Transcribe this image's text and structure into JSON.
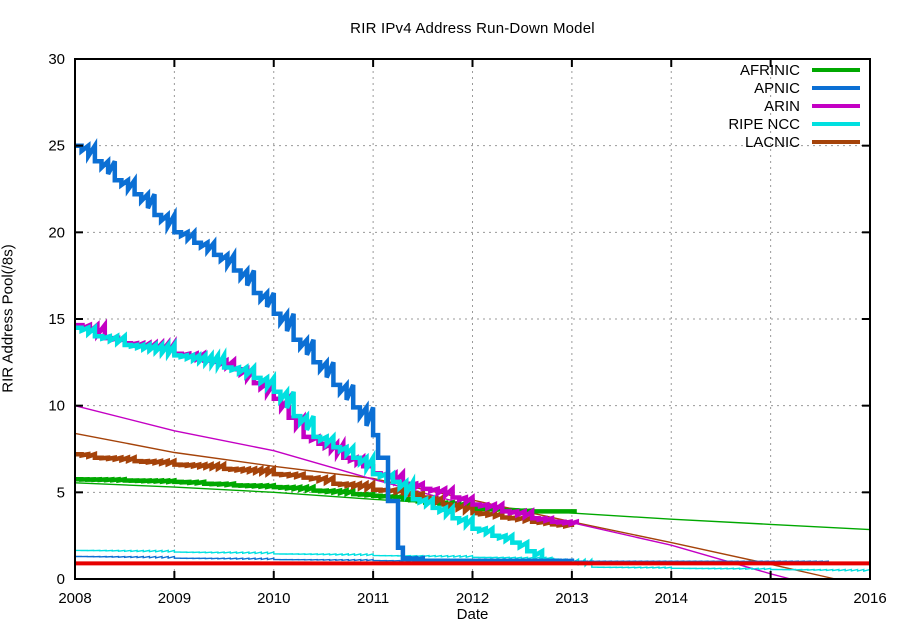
{
  "chart_data": {
    "type": "line",
    "title": "RIR IPv4 Address Run-Down Model",
    "xlabel": "Date",
    "ylabel": "RIR Address Pool(/8s)",
    "xlim": [
      2008,
      2016
    ],
    "ylim": [
      0,
      30
    ],
    "x_ticks": [
      2008,
      2009,
      2010,
      2011,
      2012,
      2013,
      2014,
      2015,
      2016
    ],
    "y_ticks": [
      0,
      5,
      10,
      15,
      20,
      25,
      30
    ],
    "grid": true,
    "grid_style": "dotted",
    "grid_color": "#9a9a9a",
    "legend_position": "top-right-inside",
    "legend": [
      {
        "label": "AFRINIC",
        "color": "#00a800"
      },
      {
        "label": "APNIC",
        "color": "#0b6fd4"
      },
      {
        "label": "ARIN",
        "color": "#c400c4"
      },
      {
        "label": "RIPE NCC",
        "color": "#00e0e0"
      },
      {
        "label": "LACNIC",
        "color": "#a5430a"
      }
    ],
    "series": [
      {
        "name": "AFRINIC-model",
        "color": "#00a800",
        "width": 1.4,
        "stepped": false,
        "points": [
          [
            2008,
            5.55
          ],
          [
            2009,
            5.3
          ],
          [
            2010,
            5.0
          ],
          [
            2011,
            4.6
          ],
          [
            2012,
            4.25
          ],
          [
            2013,
            3.8
          ],
          [
            2014,
            3.45
          ],
          [
            2015,
            3.15
          ],
          [
            2016,
            2.85
          ]
        ]
      },
      {
        "name": "LACNIC-model",
        "color": "#a5430a",
        "width": 1.4,
        "stepped": false,
        "points": [
          [
            2008,
            8.4
          ],
          [
            2009,
            7.3
          ],
          [
            2010,
            6.5
          ],
          [
            2011,
            5.8
          ],
          [
            2012,
            4.55
          ],
          [
            2013,
            3.3
          ],
          [
            2014,
            2.1
          ],
          [
            2015,
            0.85
          ],
          [
            2015.65,
            0
          ]
        ]
      },
      {
        "name": "ARIN-model",
        "color": "#c400c4",
        "width": 1.4,
        "stepped": false,
        "points": [
          [
            2008,
            10.0
          ],
          [
            2009,
            8.55
          ],
          [
            2010,
            7.4
          ],
          [
            2011,
            5.75
          ],
          [
            2012,
            4.2
          ],
          [
            2013,
            3.25
          ],
          [
            2014,
            1.95
          ],
          [
            2015,
            0.3
          ],
          [
            2015.2,
            0
          ]
        ]
      },
      {
        "name": "RIPE-NCC-model",
        "color": "#00e0e0",
        "width": 1.4,
        "stepped": true,
        "points": [
          [
            2008,
            1.65
          ],
          [
            2009,
            1.55
          ],
          [
            2010,
            1.45
          ],
          [
            2011,
            1.35
          ],
          [
            2012,
            1.25
          ],
          [
            2012.8,
            1.15
          ],
          [
            2013.2,
            0.68
          ],
          [
            2014,
            0.62
          ],
          [
            2015,
            0.55
          ],
          [
            2016,
            0.45
          ]
        ]
      },
      {
        "name": "APNIC-model",
        "color": "#0b6fd4",
        "width": 1.4,
        "stepped": true,
        "points": [
          [
            2008,
            1.3
          ],
          [
            2009,
            1.2
          ],
          [
            2010,
            1.12
          ],
          [
            2011,
            1.06
          ],
          [
            2011.4,
            1.03
          ],
          [
            2015.58,
            1.0
          ]
        ]
      },
      {
        "name": "AFRINIC-actual",
        "color": "#00a800",
        "width": 4.5,
        "stepped": true,
        "points": [
          [
            2008,
            5.75
          ],
          [
            2008.5,
            5.68
          ],
          [
            2009,
            5.6
          ],
          [
            2009.3,
            5.5
          ],
          [
            2009.6,
            5.4
          ],
          [
            2010,
            5.3
          ],
          [
            2010.4,
            5.1
          ],
          [
            2010.8,
            4.9
          ],
          [
            2011,
            4.8
          ],
          [
            2011.3,
            4.6
          ],
          [
            2011.6,
            4.4
          ],
          [
            2012,
            4.05
          ],
          [
            2012.3,
            3.95
          ],
          [
            2012.6,
            3.9
          ],
          [
            2013.05,
            3.9
          ]
        ]
      },
      {
        "name": "LACNIC-actual",
        "color": "#a5430a",
        "width": 4.5,
        "stepped": true,
        "points": [
          [
            2008,
            7.2
          ],
          [
            2008.2,
            7.0
          ],
          [
            2008.6,
            6.8
          ],
          [
            2009,
            6.6
          ],
          [
            2009.5,
            6.35
          ],
          [
            2010,
            6.05
          ],
          [
            2010.3,
            5.85
          ],
          [
            2010.6,
            5.5
          ],
          [
            2011,
            5.15
          ],
          [
            2011.3,
            4.95
          ],
          [
            2011.5,
            4.7
          ],
          [
            2011.7,
            4.3
          ],
          [
            2012,
            3.8
          ],
          [
            2012.3,
            3.55
          ],
          [
            2012.6,
            3.3
          ],
          [
            2012.8,
            3.15
          ],
          [
            2013,
            3.0
          ]
        ]
      },
      {
        "name": "ARIN-actual",
        "color": "#c400c4",
        "width": 4.5,
        "stepped": true,
        "points": [
          [
            2008,
            14.65
          ],
          [
            2008.3,
            13.9
          ],
          [
            2008.5,
            13.6
          ],
          [
            2009,
            13.0
          ],
          [
            2009.3,
            12.6
          ],
          [
            2009.6,
            12.1
          ],
          [
            2009.8,
            11.3
          ],
          [
            2010,
            10.4
          ],
          [
            2010.15,
            9.3
          ],
          [
            2010.3,
            8.2
          ],
          [
            2010.45,
            7.8
          ],
          [
            2010.7,
            7.0
          ],
          [
            2010.9,
            6.5
          ],
          [
            2011,
            6.1
          ],
          [
            2011.3,
            5.5
          ],
          [
            2011.5,
            5.2
          ],
          [
            2011.8,
            4.7
          ],
          [
            2012,
            4.3
          ],
          [
            2012.3,
            3.9
          ],
          [
            2012.6,
            3.5
          ],
          [
            2012.8,
            3.3
          ],
          [
            2013.05,
            3.15
          ]
        ]
      },
      {
        "name": "RIPE-NCC-actual",
        "color": "#00e0e0",
        "width": 4.5,
        "stepped": true,
        "points": [
          [
            2008,
            14.5
          ],
          [
            2008.2,
            14.0
          ],
          [
            2008.5,
            13.5
          ],
          [
            2009,
            12.9
          ],
          [
            2009.5,
            12.2
          ],
          [
            2009.8,
            11.6
          ],
          [
            2010,
            10.8
          ],
          [
            2010.2,
            9.4
          ],
          [
            2010.4,
            8.2
          ],
          [
            2010.6,
            7.6
          ],
          [
            2010.8,
            7.0
          ],
          [
            2011,
            6.05
          ],
          [
            2011.2,
            5.6
          ],
          [
            2011.4,
            4.6
          ],
          [
            2011.6,
            4.1
          ],
          [
            2011.8,
            3.5
          ],
          [
            2012,
            2.9
          ],
          [
            2012.2,
            2.5
          ],
          [
            2012.4,
            2.1
          ],
          [
            2012.55,
            1.6
          ],
          [
            2012.7,
            1.1
          ],
          [
            2012.8,
            1.0
          ],
          [
            2013,
            0.97
          ]
        ]
      },
      {
        "name": "APNIC-actual",
        "color": "#0b6fd4",
        "width": 4.5,
        "stepped": true,
        "points": [
          [
            2008,
            25.0
          ],
          [
            2008.2,
            24.1
          ],
          [
            2008.4,
            23.0
          ],
          [
            2008.6,
            22.2
          ],
          [
            2008.8,
            21.0
          ],
          [
            2009,
            20.0
          ],
          [
            2009.2,
            19.4
          ],
          [
            2009.4,
            18.7
          ],
          [
            2009.6,
            17.8
          ],
          [
            2009.8,
            16.5
          ],
          [
            2010,
            15.3
          ],
          [
            2010.2,
            13.8
          ],
          [
            2010.4,
            12.5
          ],
          [
            2010.6,
            11.2
          ],
          [
            2010.8,
            9.9
          ],
          [
            2011,
            8.3
          ],
          [
            2011.05,
            7.0
          ],
          [
            2011.15,
            4.5
          ],
          [
            2011.25,
            1.8
          ],
          [
            2011.3,
            1.2
          ],
          [
            2011.5,
            1.05
          ],
          [
            2013,
            1.03
          ]
        ]
      },
      {
        "name": "last-slash8-threshold",
        "color": "#e60000",
        "width": 4.0,
        "stepped": false,
        "points": [
          [
            2008,
            0.9
          ],
          [
            2016,
            0.9
          ]
        ]
      }
    ]
  }
}
